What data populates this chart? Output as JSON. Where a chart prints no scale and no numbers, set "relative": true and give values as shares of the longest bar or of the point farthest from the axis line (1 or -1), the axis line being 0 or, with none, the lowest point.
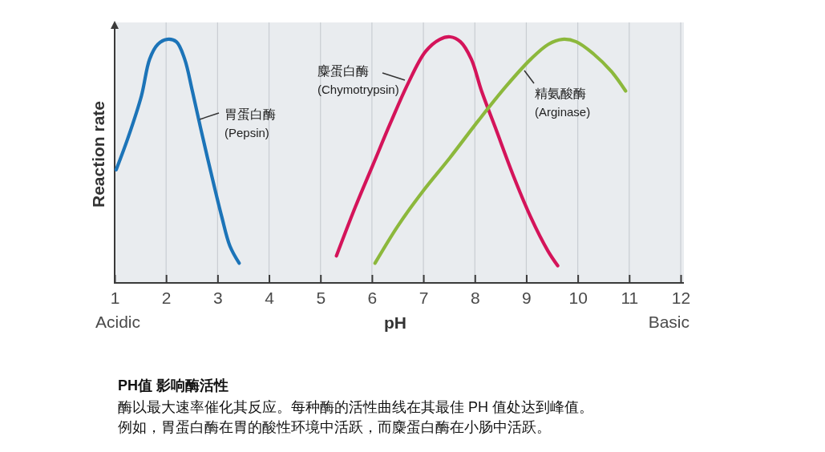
{
  "chart_data": {
    "type": "line",
    "title": "PH值 影响酶活性",
    "xlabel": "pH",
    "ylabel": "Reaction rate",
    "annotations": [
      "Acidic",
      "Basic",
      "酶以最大速率催化其反应。每种酶的活性曲线在其最佳 PH 值处达到峰值。",
      "例如，胃蛋白酶在胃的酸性环境中活跃，而麋蛋白酶在小肠中活跃。"
    ],
    "relative": true,
    "xlim": [
      1,
      12
    ],
    "xticks": [
      1,
      2,
      3,
      4,
      5,
      6,
      7,
      8,
      9,
      10,
      11,
      12
    ],
    "grid": "x",
    "tick_labels": "x",
    "line_style": "solid",
    "series": [
      {
        "name": "胃蛋白酶 (Pepsin)",
        "color": "#1c74b8",
        "x": [
          1.03,
          1.26,
          1.52,
          1.68,
          1.84,
          2.02,
          2.2,
          2.36,
          2.51,
          2.67,
          2.87,
          3.08,
          3.24,
          3.42
        ],
        "values": [
          0.46,
          0.59,
          0.76,
          0.91,
          0.97,
          0.99,
          0.98,
          0.91,
          0.78,
          0.63,
          0.45,
          0.27,
          0.15,
          0.08
        ]
      },
      {
        "name": "麋蛋白酶 (Chymotrypsin)",
        "color": "#d4145a",
        "x": [
          5.31,
          5.68,
          6.02,
          6.36,
          6.7,
          7.04,
          7.32,
          7.52,
          7.72,
          7.93,
          8.13,
          8.4,
          8.74,
          9.08,
          9.42,
          9.61
        ],
        "values": [
          0.11,
          0.31,
          0.48,
          0.65,
          0.81,
          0.94,
          0.99,
          1,
          0.98,
          0.91,
          0.78,
          0.63,
          0.44,
          0.27,
          0.13,
          0.07
        ]
      },
      {
        "name": "精氨酸酶 (Arginase)",
        "color": "#8cb83c",
        "x": [
          6.06,
          6.5,
          6.98,
          7.52,
          8.07,
          8.61,
          9.09,
          9.43,
          9.7,
          9.97,
          10.31,
          10.65,
          10.93
        ],
        "values": [
          0.08,
          0.23,
          0.37,
          0.51,
          0.66,
          0.8,
          0.91,
          0.97,
          0.99,
          0.98,
          0.93,
          0.86,
          0.78
        ]
      }
    ]
  }
}
